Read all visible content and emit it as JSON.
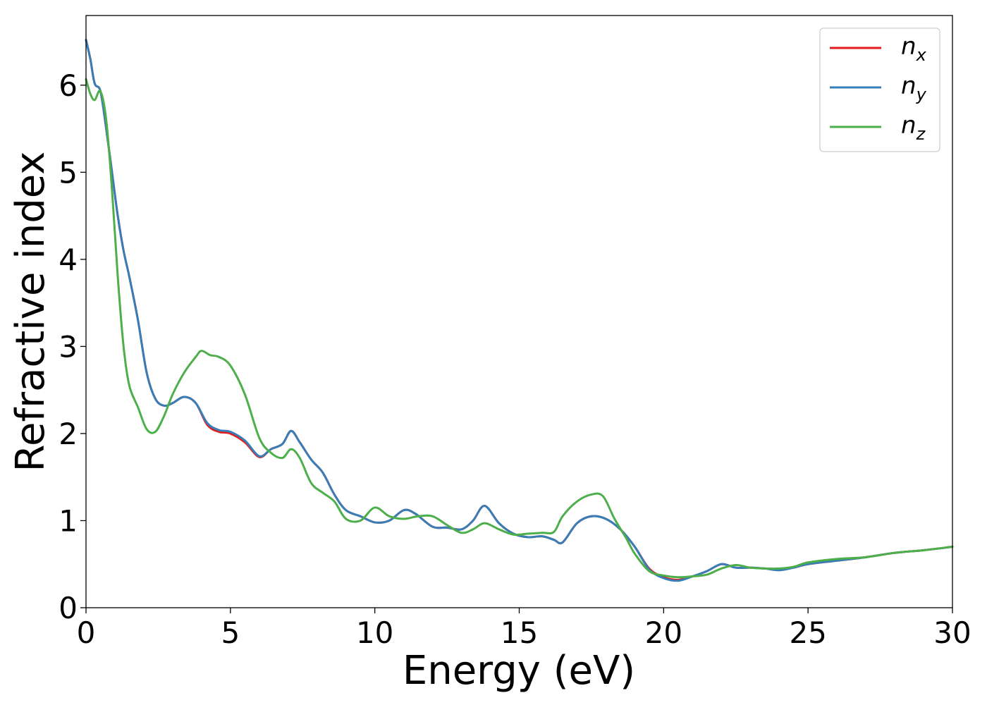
{
  "chart_data": {
    "type": "line",
    "title": "",
    "xlabel": "Energy (eV)",
    "ylabel": "Refractive index",
    "xlim": [
      0,
      30
    ],
    "ylim": [
      0,
      6.8
    ],
    "xticks": [
      0,
      5,
      10,
      15,
      20,
      25,
      30
    ],
    "yticks": [
      0,
      1,
      2,
      3,
      4,
      5,
      6
    ],
    "grid": false,
    "legend_position": "top-right",
    "series": [
      {
        "name": "n",
        "subscript": "x",
        "color": "#e41a1c",
        "x": [
          0,
          0.15,
          0.3,
          0.5,
          0.7,
          0.9,
          1.1,
          1.3,
          1.5,
          1.8,
          2.1,
          2.4,
          2.7,
          3.0,
          3.4,
          3.8,
          4.2,
          4.6,
          5.0,
          5.5,
          6.0,
          6.4,
          6.8,
          7.1,
          7.4,
          7.8,
          8.2,
          8.6,
          9.0,
          9.5,
          10.0,
          10.5,
          11.0,
          11.4,
          12.0,
          12.5,
          13.0,
          13.4,
          13.8,
          14.3,
          14.8,
          15.3,
          15.8,
          16.2,
          16.5,
          17.0,
          17.5,
          18.0,
          18.5,
          19.0,
          19.5,
          20.0,
          20.5,
          21.0,
          21.5,
          22.0,
          22.5,
          23.0,
          23.5,
          24.0,
          24.5,
          25.0,
          26.0,
          27.0,
          28.0,
          29.0,
          30.0
        ],
        "y": [
          6.52,
          6.3,
          6.02,
          5.93,
          5.5,
          5.0,
          4.5,
          4.1,
          3.8,
          3.3,
          2.7,
          2.4,
          2.32,
          2.35,
          2.42,
          2.35,
          2.1,
          2.02,
          2.0,
          1.9,
          1.73,
          1.82,
          1.88,
          2.03,
          1.9,
          1.7,
          1.55,
          1.3,
          1.12,
          1.05,
          0.98,
          1.0,
          1.12,
          1.08,
          0.93,
          0.92,
          0.9,
          1.0,
          1.17,
          0.97,
          0.85,
          0.81,
          0.82,
          0.78,
          0.75,
          0.97,
          1.05,
          1.02,
          0.9,
          0.7,
          0.45,
          0.35,
          0.32,
          0.36,
          0.42,
          0.5,
          0.46,
          0.46,
          0.45,
          0.44,
          0.46,
          0.5,
          0.54,
          0.58,
          0.63,
          0.66,
          0.7
        ]
      },
      {
        "name": "n",
        "subscript": "y",
        "color": "#377eb8",
        "x": [
          0,
          0.15,
          0.3,
          0.5,
          0.7,
          0.9,
          1.1,
          1.3,
          1.5,
          1.8,
          2.1,
          2.4,
          2.7,
          3.0,
          3.4,
          3.8,
          4.2,
          4.6,
          5.0,
          5.5,
          6.0,
          6.4,
          6.8,
          7.1,
          7.4,
          7.8,
          8.2,
          8.6,
          9.0,
          9.5,
          10.0,
          10.5,
          11.0,
          11.4,
          12.0,
          12.5,
          13.0,
          13.4,
          13.8,
          14.3,
          14.8,
          15.3,
          15.8,
          16.2,
          16.5,
          17.0,
          17.5,
          18.0,
          18.5,
          19.0,
          19.5,
          20.0,
          20.5,
          21.0,
          21.5,
          22.0,
          22.5,
          23.0,
          23.5,
          24.0,
          24.5,
          25.0,
          26.0,
          27.0,
          28.0,
          29.0,
          30.0
        ],
        "y": [
          6.52,
          6.3,
          6.02,
          5.93,
          5.5,
          5.0,
          4.5,
          4.1,
          3.8,
          3.3,
          2.7,
          2.4,
          2.32,
          2.35,
          2.42,
          2.35,
          2.12,
          2.04,
          2.02,
          1.92,
          1.74,
          1.82,
          1.88,
          2.03,
          1.9,
          1.7,
          1.55,
          1.3,
          1.12,
          1.05,
          0.98,
          1.0,
          1.12,
          1.08,
          0.93,
          0.92,
          0.9,
          1.0,
          1.17,
          0.97,
          0.85,
          0.81,
          0.82,
          0.78,
          0.75,
          0.97,
          1.05,
          1.02,
          0.9,
          0.7,
          0.44,
          0.34,
          0.31,
          0.36,
          0.42,
          0.5,
          0.46,
          0.46,
          0.45,
          0.43,
          0.46,
          0.5,
          0.54,
          0.58,
          0.63,
          0.66,
          0.7
        ]
      },
      {
        "name": "n",
        "subscript": "z",
        "color": "#4daf4a",
        "x": [
          0,
          0.15,
          0.3,
          0.5,
          0.7,
          0.9,
          1.1,
          1.3,
          1.5,
          1.8,
          2.1,
          2.4,
          2.7,
          3.0,
          3.4,
          3.8,
          4.0,
          4.3,
          4.6,
          5.0,
          5.5,
          6.0,
          6.4,
          6.8,
          7.1,
          7.4,
          7.8,
          8.2,
          8.6,
          9.0,
          9.5,
          10.0,
          10.5,
          11.0,
          11.5,
          12.0,
          12.5,
          13.0,
          13.4,
          13.8,
          14.3,
          14.8,
          15.3,
          15.8,
          16.2,
          16.5,
          17.0,
          17.5,
          17.9,
          18.3,
          18.7,
          19.0,
          19.5,
          20.0,
          20.5,
          21.0,
          21.5,
          22.0,
          22.5,
          23.0,
          23.5,
          24.0,
          24.5,
          25.0,
          26.0,
          27.0,
          28.0,
          29.0,
          30.0
        ],
        "y": [
          6.07,
          5.9,
          5.83,
          5.93,
          5.6,
          4.8,
          3.8,
          3.0,
          2.55,
          2.3,
          2.05,
          2.02,
          2.2,
          2.45,
          2.7,
          2.88,
          2.95,
          2.9,
          2.88,
          2.78,
          2.45,
          1.95,
          1.78,
          1.72,
          1.82,
          1.72,
          1.43,
          1.32,
          1.22,
          1.02,
          1.0,
          1.15,
          1.05,
          1.02,
          1.05,
          1.05,
          0.95,
          0.86,
          0.9,
          0.97,
          0.9,
          0.84,
          0.85,
          0.86,
          0.87,
          1.05,
          1.22,
          1.3,
          1.28,
          1.02,
          0.8,
          0.62,
          0.42,
          0.37,
          0.35,
          0.36,
          0.38,
          0.45,
          0.49,
          0.46,
          0.45,
          0.45,
          0.47,
          0.52,
          0.56,
          0.58,
          0.63,
          0.66,
          0.7
        ]
      }
    ]
  }
}
